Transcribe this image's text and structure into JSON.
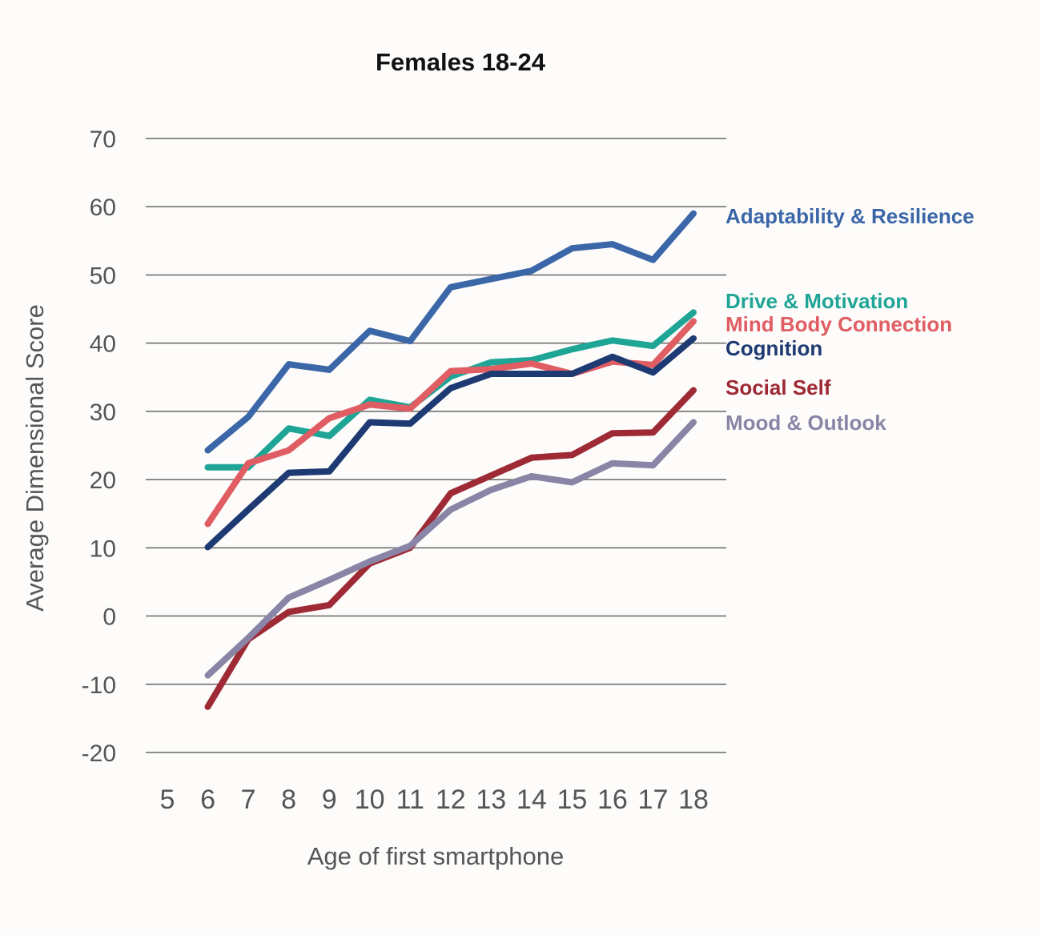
{
  "chart_data": {
    "type": "line",
    "title": "Females 18-24",
    "xlabel": "Age of first smartphone",
    "ylabel": "Average Dimensional Score",
    "categories": [
      "5",
      "6",
      "7",
      "8",
      "9",
      "10",
      "11",
      "12",
      "13",
      "14",
      "15",
      "16",
      "17",
      "18"
    ],
    "yticks": [
      70,
      60,
      50,
      40,
      30,
      20,
      10,
      0,
      -10,
      -20
    ],
    "ylim": [
      -20,
      70
    ],
    "grid": true,
    "legend": "direct labels at line ends (right)",
    "x_values": [
      6,
      7,
      8,
      9,
      10,
      11,
      12,
      13,
      14,
      15,
      16,
      17,
      18
    ],
    "series": [
      {
        "name": "Adaptability & Resilience",
        "color": "#3b66a8",
        "values": [
          24.3,
          29.2,
          36.9,
          36.1,
          41.8,
          40.3,
          48.2,
          49.4,
          50.6,
          53.9,
          54.5,
          52.2,
          59
        ]
      },
      {
        "name": "Drive & Motivation",
        "color": "#1fa596",
        "values": [
          21.8,
          21.8,
          27.5,
          26.4,
          31.7,
          30.6,
          35.1,
          37.2,
          37.5,
          39.1,
          40.4,
          39.6,
          44.5
        ]
      },
      {
        "name": "Mind Body Connection",
        "color": "#e05d63",
        "values": [
          13.5,
          22.4,
          24.3,
          29,
          31,
          30.4,
          35.9,
          36.2,
          37,
          35.5,
          37.3,
          36.8,
          43.2
        ]
      },
      {
        "name": "Cognition",
        "color": "#1e3a73",
        "values": [
          10.1,
          15.6,
          21,
          21.2,
          28.4,
          28.2,
          33.4,
          35.5,
          35.5,
          35.5,
          38,
          35.7,
          40.7
        ]
      },
      {
        "name": "Social Self",
        "color": "#9e2a35",
        "values": [
          -13.3,
          -3.4,
          0.6,
          1.6,
          7.7,
          10,
          18,
          20.6,
          23.2,
          23.6,
          26.8,
          26.9,
          33.1
        ]
      },
      {
        "name": "Mood & Outlook",
        "color": "#8a85a6",
        "values": [
          -8.7,
          -3.2,
          2.7,
          5.3,
          8,
          10.3,
          15.6,
          18.5,
          20.5,
          19.6,
          22.4,
          22.1,
          28.4
        ]
      }
    ]
  }
}
